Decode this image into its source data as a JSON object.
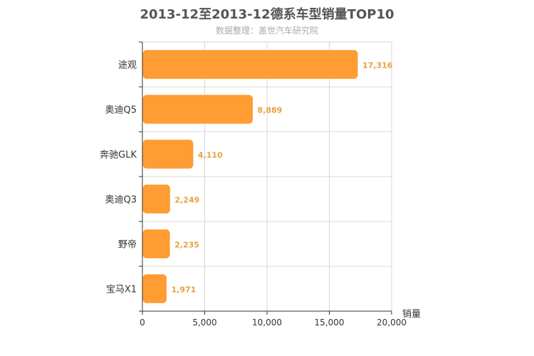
{
  "header": {
    "title": "2013-12至2013-12德系车型销量TOP10",
    "subtitle": "数据整理：盖世汽车研究院"
  },
  "colors": {
    "bar": "#ff9c33",
    "bar_stroke": "#ffffff",
    "grid": "#d8d8d8",
    "axis": "#333333",
    "data_label": "#e8a040"
  },
  "chart_data": {
    "type": "bar",
    "orientation": "horizontal",
    "title": "2013-12至2013-12德系车型销量TOP10",
    "subtitle": "数据整理：盖世汽车研究院",
    "categories": [
      "途观",
      "奥迪Q5",
      "奔驰GLK",
      "奥迪Q3",
      "野帝",
      "宝马X1"
    ],
    "values": [
      17316,
      8889,
      4110,
      2249,
      2235,
      1971
    ],
    "value_labels": [
      "17,316",
      "8,889",
      "4,110",
      "2,249",
      "2,235",
      "1,971"
    ],
    "xlabel": "销量",
    "ylabel": "",
    "xlim": [
      0,
      20000
    ],
    "ticks": [
      0,
      5000,
      10000,
      15000,
      20000
    ],
    "tick_labels": [
      "0",
      "5,000",
      "10,000",
      "15,000",
      "20,000"
    ],
    "grid": true
  }
}
